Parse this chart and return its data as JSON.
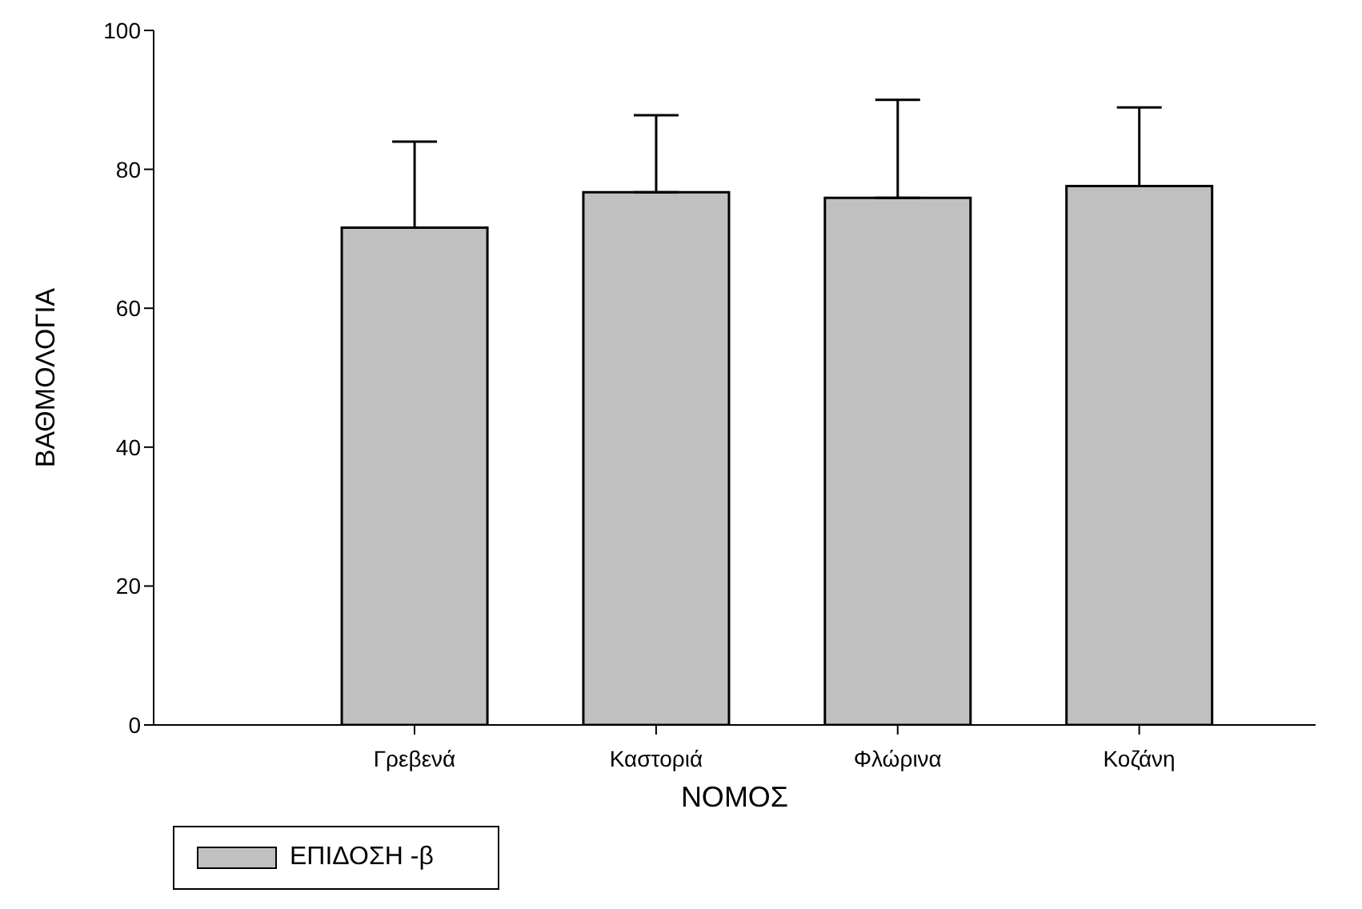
{
  "chart_data": {
    "type": "bar",
    "xlabel": "ΝΟΜΟΣ",
    "ylabel": "ΒΑΘΜΟΛΟΓΙΑ",
    "categories": [
      "Γρεβενά",
      "Καστοριά",
      "Φλώρινα",
      "Κοζάνη"
    ],
    "series": [
      {
        "name": "ΕΠΙΔΟΣΗ -β",
        "color": "#c0c0c0",
        "values": [
          71.6,
          76.7,
          75.9,
          77.6
        ],
        "errors": [
          [
            71.6,
            84.0
          ],
          [
            76.7,
            87.8
          ],
          [
            75.9,
            90.0
          ],
          [
            77.6,
            88.9
          ]
        ]
      }
    ],
    "ylim": [
      0,
      100
    ],
    "yticks": [
      0,
      20,
      40,
      60,
      80,
      100
    ],
    "grid": false,
    "legend": "bottom left"
  }
}
